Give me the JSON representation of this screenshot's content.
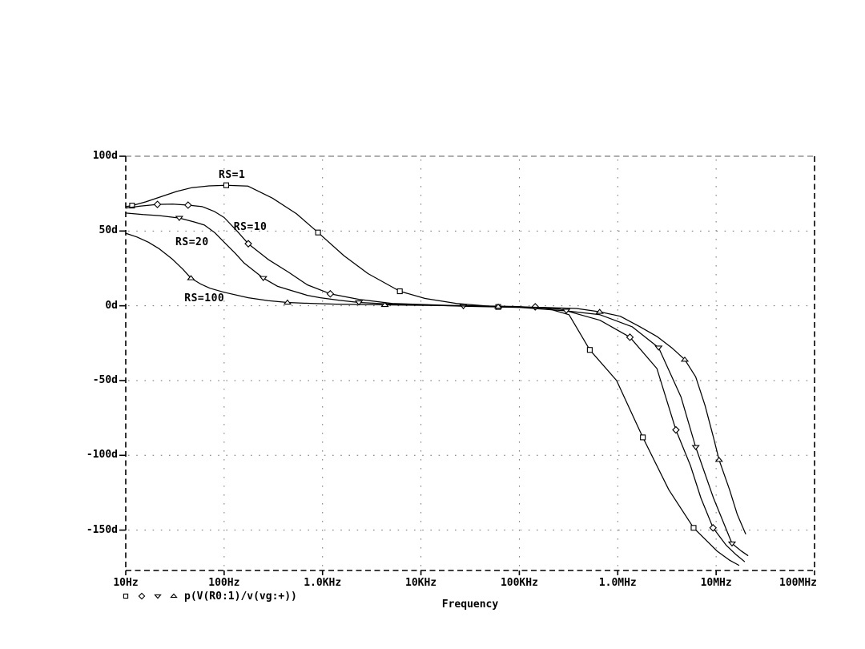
{
  "window": {
    "background": "#ffffff",
    "foreground": "#000000"
  },
  "chart_data": {
    "type": "line",
    "title": "",
    "xlabel": "Frequency",
    "ylabel": "",
    "x_axis": {
      "scale": "log",
      "min_hz": 10,
      "max_hz": 100000000,
      "tick_freqs_hz": [
        10,
        100,
        1000,
        10000,
        100000,
        1000000,
        10000000,
        100000000
      ],
      "tick_labels": [
        "10Hz",
        "100Hz",
        "1.0KHz",
        "10KHz",
        "100KHz",
        "1.0MHz",
        "10MHz",
        "100MHz"
      ],
      "gridline_freqs_hz": [
        100,
        1000,
        10000,
        100000,
        1000000,
        10000000
      ]
    },
    "y_axis": {
      "unit": "degrees",
      "top": 100,
      "bottom": -177,
      "tick_values": [
        100,
        50,
        0,
        -50,
        -100,
        -150
      ],
      "tick_labels": [
        "100d",
        "50d",
        "0d",
        "-50d",
        "-100d",
        "-150d"
      ],
      "gridline_values": [
        50,
        0,
        -50,
        -100,
        -150
      ]
    },
    "grid": "dotted",
    "legend": {
      "marker_names": [
        "square",
        "diamond",
        "triangle-down",
        "triangle-up"
      ],
      "label": "p(V(R0:1)/v(vg:+))"
    },
    "annotations": [
      {
        "text": "RS=1",
        "f_hz": 88,
        "phase_deg": 91
      },
      {
        "text": "RS=10",
        "f_hz": 125,
        "phase_deg": 56
      },
      {
        "text": "RS=20",
        "f_hz": 32,
        "phase_deg": 46
      },
      {
        "text": "RS=100",
        "f_hz": 39.5,
        "phase_deg": 8.3
      }
    ],
    "series": [
      {
        "name": "RS=1",
        "marker": "square",
        "color": "#000000",
        "points": [
          [
            10,
            66.3
          ],
          [
            11.6,
            67
          ],
          [
            16,
            69.5
          ],
          [
            23,
            73
          ],
          [
            33,
            76.5
          ],
          [
            47,
            79
          ],
          [
            70,
            80.2
          ],
          [
            105,
            80.6
          ],
          [
            175,
            80
          ],
          [
            310,
            72
          ],
          [
            545,
            61.5
          ],
          [
            900,
            49
          ],
          [
            1650,
            33.5
          ],
          [
            2900,
            21.5
          ],
          [
            6100,
            9.7
          ],
          [
            11000,
            4.9
          ],
          [
            23000,
            1.6
          ],
          [
            61000,
            -0.8
          ],
          [
            180000,
            -1.2
          ],
          [
            320000,
            -6
          ],
          [
            520000,
            -29.5
          ],
          [
            975000,
            -50
          ],
          [
            1800000,
            -88
          ],
          [
            3300000,
            -123
          ],
          [
            5900000,
            -148.5
          ],
          [
            10200000,
            -164
          ],
          [
            13600000,
            -170
          ],
          [
            17000000,
            -173.5
          ]
        ],
        "marker_points": [
          [
            11.6,
            67
          ],
          [
            105,
            80.6
          ],
          [
            900,
            49
          ],
          [
            6100,
            9.7
          ],
          [
            61000,
            -0.8
          ],
          [
            520000,
            -29.5
          ],
          [
            1800000,
            -88
          ],
          [
            5900000,
            -148.5
          ]
        ]
      },
      {
        "name": "RS=10",
        "marker": "diamond",
        "color": "#000000",
        "points": [
          [
            10,
            65.3
          ],
          [
            14,
            66.6
          ],
          [
            21,
            67.8
          ],
          [
            30,
            68
          ],
          [
            43,
            67.3
          ],
          [
            60,
            66.3
          ],
          [
            80,
            63
          ],
          [
            100,
            59
          ],
          [
            135,
            50
          ],
          [
            176,
            41.5
          ],
          [
            280,
            31
          ],
          [
            450,
            22.5
          ],
          [
            700,
            14
          ],
          [
            1200,
            8
          ],
          [
            2340,
            4.3
          ],
          [
            5100,
            1.6
          ],
          [
            19000,
            0.3
          ],
          [
            100000,
            -0.5
          ],
          [
            258000,
            -2.2
          ],
          [
            660000,
            -9.7
          ],
          [
            1330000,
            -21
          ],
          [
            2500000,
            -42
          ],
          [
            3900000,
            -83
          ],
          [
            5500000,
            -107
          ],
          [
            7000000,
            -128.5
          ],
          [
            9300000,
            -148.5
          ],
          [
            12600000,
            -160
          ],
          [
            16000000,
            -166.5
          ],
          [
            19400000,
            -171
          ]
        ],
        "marker_points": [
          [
            21,
            67.8
          ],
          [
            43,
            67.3
          ],
          [
            176,
            41.5
          ],
          [
            1200,
            8
          ],
          [
            145000,
            -0.7
          ],
          [
            1330000,
            -21
          ],
          [
            3900000,
            -83
          ],
          [
            9300000,
            -148.5
          ]
        ]
      },
      {
        "name": "RS=20",
        "marker": "triangle-down",
        "color": "#000000",
        "points": [
          [
            10,
            62
          ],
          [
            15,
            61
          ],
          [
            22,
            60.3
          ],
          [
            35,
            58.7
          ],
          [
            50,
            56
          ],
          [
            63,
            54
          ],
          [
            80,
            49
          ],
          [
            100,
            42.5
          ],
          [
            130,
            35
          ],
          [
            160,
            28.5
          ],
          [
            250,
            18.5
          ],
          [
            350,
            13
          ],
          [
            450,
            10.8
          ],
          [
            700,
            7
          ],
          [
            950,
            5.4
          ],
          [
            1500,
            3.6
          ],
          [
            2340,
            2.2
          ],
          [
            4500,
            1.3
          ],
          [
            9000,
            0.8
          ],
          [
            27000,
            -0.3
          ],
          [
            103000,
            -1.1
          ],
          [
            300000,
            -3.4
          ],
          [
            660000,
            -6
          ],
          [
            1400000,
            -14
          ],
          [
            2600000,
            -28
          ],
          [
            4400000,
            -61
          ],
          [
            6200000,
            -94.5
          ],
          [
            9400000,
            -128.5
          ],
          [
            14500000,
            -159
          ],
          [
            18000000,
            -164
          ],
          [
            21000000,
            -167
          ]
        ],
        "marker_points": [
          [
            35,
            58.7
          ],
          [
            250,
            18.5
          ],
          [
            2340,
            2.2
          ],
          [
            27000,
            -0.3
          ],
          [
            300000,
            -3.4
          ],
          [
            2600000,
            -28
          ],
          [
            6200000,
            -94.5
          ],
          [
            14500000,
            -159
          ]
        ]
      },
      {
        "name": "RS=100",
        "marker": "triangle-up",
        "color": "#000000",
        "points": [
          [
            10,
            48.5
          ],
          [
            13,
            46
          ],
          [
            17,
            42.5
          ],
          [
            22,
            38
          ],
          [
            30,
            31
          ],
          [
            38,
            24.5
          ],
          [
            46,
            18.5
          ],
          [
            58,
            14.5
          ],
          [
            72,
            11.7
          ],
          [
            100,
            9
          ],
          [
            176,
            5.4
          ],
          [
            280,
            3.4
          ],
          [
            440,
            2.2
          ],
          [
            800,
            1.5
          ],
          [
            1380,
            1.1
          ],
          [
            4300,
            0.6
          ],
          [
            19000,
            0.1
          ],
          [
            61000,
            -0.5
          ],
          [
            180000,
            -1.1
          ],
          [
            380000,
            -1.8
          ],
          [
            655000,
            -4
          ],
          [
            1060000,
            -7
          ],
          [
            1680000,
            -14
          ],
          [
            2500000,
            -20.5
          ],
          [
            3600000,
            -28.5
          ],
          [
            4800000,
            -36
          ],
          [
            6200000,
            -47.5
          ],
          [
            7700000,
            -66.5
          ],
          [
            9400000,
            -88
          ],
          [
            10700000,
            -103
          ],
          [
            13700000,
            -123
          ],
          [
            16400000,
            -139.5
          ],
          [
            19900000,
            -152.5
          ]
        ],
        "marker_points": [
          [
            46,
            18.5
          ],
          [
            440,
            2.2
          ],
          [
            4300,
            0.6
          ],
          [
            61000,
            -0.5
          ],
          [
            655000,
            -4
          ],
          [
            4800000,
            -36
          ],
          [
            10700000,
            -103
          ]
        ]
      }
    ]
  }
}
